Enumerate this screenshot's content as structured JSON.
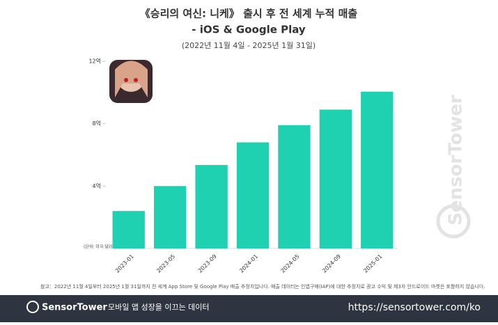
{
  "chart_data": {
    "type": "bar",
    "title": "《승리의 여신: 니케》 출시 후 전 세계 누적 매출",
    "title_line2": "- iOS & Google Play",
    "subtitle": "(2022년 11월 4일 - 2025년 1월 31일)",
    "unit_label": "(단위: 미국 달러)",
    "categories": [
      "2023-01",
      "2023-05",
      "2023-09",
      "2024-01",
      "2024-05",
      "2024-09",
      "2025-01"
    ],
    "values": [
      2.4,
      4.0,
      5.35,
      6.8,
      7.9,
      8.9,
      10.05
    ],
    "color": "#1fd1b0",
    "ylim": [
      0,
      12
    ],
    "yticks": [
      {
        "value": 4,
        "label": "4억"
      },
      {
        "value": 8,
        "label": "8억"
      },
      {
        "value": 12,
        "label": "12억"
      }
    ],
    "note": "참고：2022년 11월 4일부터 2025년 1월 31일까지 전 세계 App Store 및 Google Play 매출 추정치입니다. 매출 데이터는 인앱구매(IAP)에 대한 추정치로 광고 수익 및 제3자 안드로이드 마켓은 포함하지 않습니다."
  },
  "footer": {
    "brand": "SensorTower",
    "tagline": "모바일 앱 성장을 이끄는 데이터",
    "url": "https://sensortower.com/ko"
  }
}
